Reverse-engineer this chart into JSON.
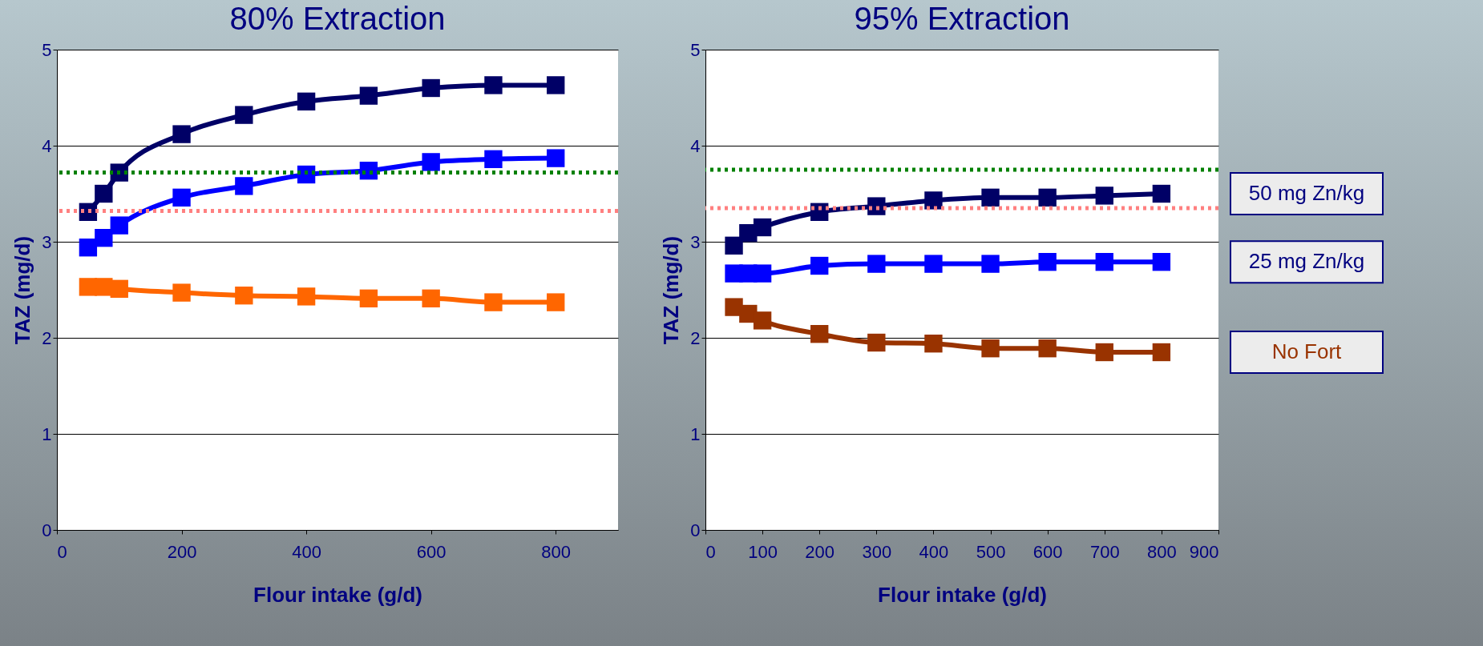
{
  "chart_data": [
    {
      "type": "line",
      "title": "80% Extraction",
      "xlabel": "Flour intake (g/d)",
      "ylabel": "TAZ (mg/d)",
      "x": [
        50,
        75,
        100,
        200,
        300,
        400,
        500,
        600,
        700,
        800
      ],
      "series": [
        {
          "color": "#000066",
          "values": [
            3.31,
            3.5,
            3.72,
            4.12,
            4.32,
            4.46,
            4.52,
            4.6,
            4.63,
            4.63
          ]
        },
        {
          "color": "#0000ff",
          "values": [
            2.94,
            3.04,
            3.17,
            3.46,
            3.58,
            3.7,
            3.74,
            3.83,
            3.86,
            3.87
          ]
        },
        {
          "color": "#ff6600",
          "values": [
            2.53,
            2.53,
            2.51,
            2.47,
            2.44,
            2.43,
            2.41,
            2.41,
            2.37,
            2.37
          ]
        }
      ],
      "xlim": [
        0,
        900
      ],
      "xticks": [
        0,
        200,
        400,
        600,
        800
      ],
      "ylim": [
        0,
        5
      ],
      "yticks": [
        0,
        1,
        2,
        3,
        4,
        5
      ],
      "ref_lines": [
        {
          "axis": "y",
          "value": 3.72,
          "color": "#008000",
          "line_style": "dotted"
        },
        {
          "axis": "y",
          "value": 3.32,
          "color": "#ff8080",
          "line_style": "dotted"
        }
      ],
      "grid": "y",
      "marker": "square",
      "line_style": "solid"
    },
    {
      "type": "line",
      "title": "95% Extraction",
      "xlabel": "Flour intake (g/d)",
      "ylabel": "TAZ (mg/d)",
      "x": [
        50,
        75,
        100,
        200,
        300,
        400,
        500,
        600,
        700,
        800
      ],
      "series": [
        {
          "name": "50 mg Zn/kg",
          "color": "#000066",
          "values": [
            2.96,
            3.09,
            3.15,
            3.31,
            3.37,
            3.43,
            3.46,
            3.46,
            3.48,
            3.5
          ]
        },
        {
          "name": "25 mg Zn/kg",
          "color": "#0000ff",
          "values": [
            2.67,
            2.67,
            2.67,
            2.75,
            2.77,
            2.77,
            2.77,
            2.79,
            2.79,
            2.79
          ]
        },
        {
          "name": "No Fort",
          "color": "#993300",
          "values": [
            2.32,
            2.25,
            2.18,
            2.04,
            1.95,
            1.94,
            1.89,
            1.89,
            1.85,
            1.85
          ]
        }
      ],
      "xlim": [
        0,
        900
      ],
      "xticks": [
        0,
        100,
        200,
        300,
        400,
        500,
        600,
        700,
        800,
        900
      ],
      "ylim": [
        0,
        5
      ],
      "yticks": [
        0,
        1,
        2,
        3,
        4,
        5
      ],
      "ref_lines": [
        {
          "axis": "y",
          "value": 3.75,
          "color": "#008000",
          "line_style": "dotted"
        },
        {
          "axis": "y",
          "value": 3.35,
          "color": "#ff8080",
          "line_style": "dotted"
        }
      ],
      "grid": "y",
      "marker": "square",
      "line_style": "solid"
    }
  ]
}
